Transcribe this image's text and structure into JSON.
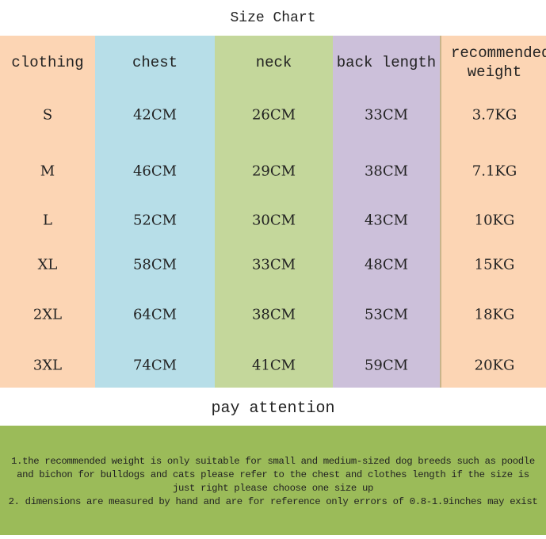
{
  "title": "Size  Chart",
  "colors": {
    "clothing": "#fcd5b4",
    "chest": "#b7dee8",
    "neck": "#c4d79b",
    "back_length": "#ccc0da",
    "weight": "#fcd5b4",
    "note": "#9bbb59"
  },
  "columns": [
    {
      "header": "clothing",
      "values": [
        "S",
        "M",
        "L",
        "XL",
        "2XL",
        "3XL"
      ]
    },
    {
      "header": "chest",
      "values": [
        "42CM",
        "46CM",
        "52CM",
        "58CM",
        "64CM",
        "74CM"
      ]
    },
    {
      "header": "neck",
      "values": [
        "26CM",
        "29CM",
        "30CM",
        "33CM",
        "38CM",
        "41CM"
      ]
    },
    {
      "header": "back length",
      "values": [
        "33CM",
        "38CM",
        "43CM",
        "48CM",
        "53CM",
        "59CM"
      ]
    },
    {
      "header": "recommended weight",
      "values": [
        "3.7KG",
        "7.1KG",
        "10KG",
        "15KG",
        "18KG",
        "20KG"
      ]
    }
  ],
  "attention_title": "pay attention",
  "notes": [
    "1.the recommended weight is only suitable for small and medium-sized dog breeds such as poodle and bichon for bulldogs and cats please refer to the chest and clothes length if the size is just right please choose one size up",
    "2. dimensions are measured by hand and are for reference only errors of 0.8-1.9inches may exist"
  ]
}
